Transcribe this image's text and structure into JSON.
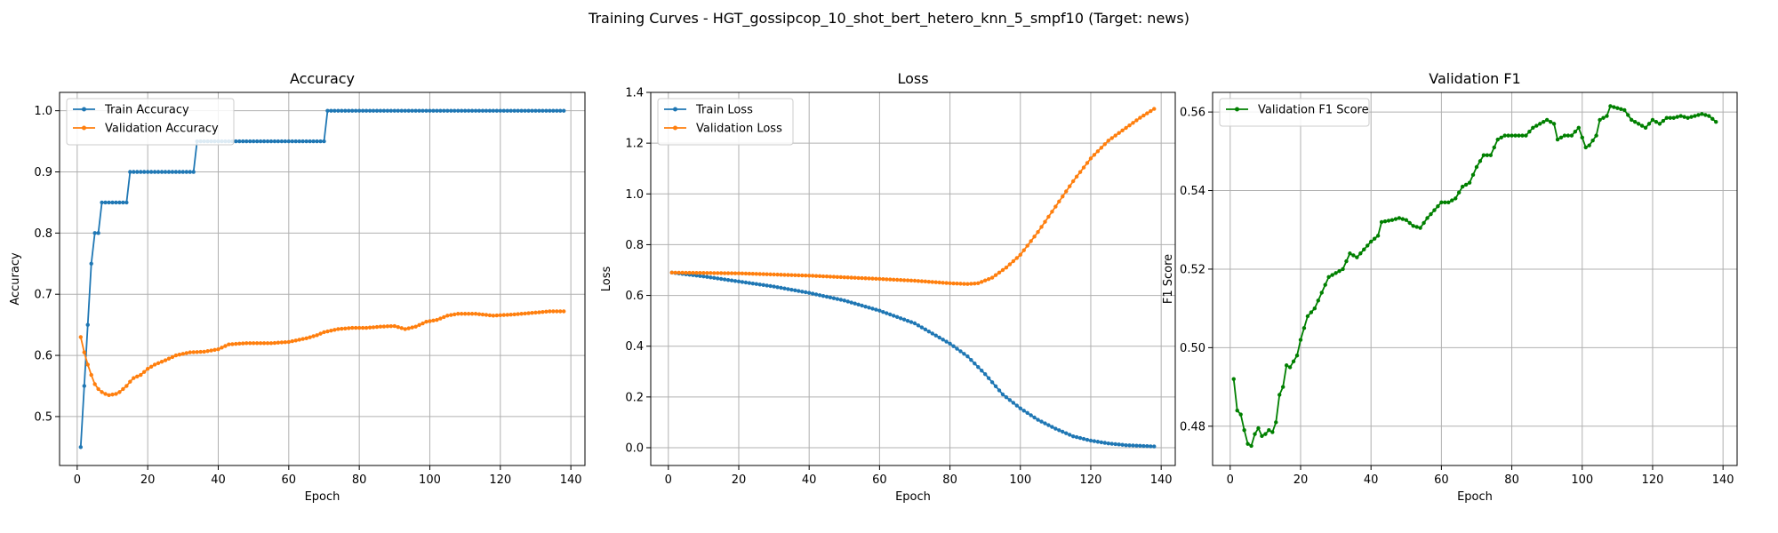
{
  "suptitle": "Training Curves - HGT_gossipcop_10_shot_bert_hetero_knn_5_smpf10 (Target: news)",
  "chart_data": [
    {
      "type": "line",
      "title": "Accuracy",
      "xlabel": "Epoch",
      "ylabel": "Accuracy",
      "xlim": [
        -5,
        144
      ],
      "ylim": [
        0.42,
        1.03
      ],
      "xticks": [
        0,
        20,
        40,
        60,
        80,
        100,
        120,
        140
      ],
      "yticks": [
        0.5,
        0.6,
        0.7,
        0.8,
        0.9,
        1.0
      ],
      "ytick_labels": [
        "0.5",
        "0.6",
        "0.7",
        "0.8",
        "0.9",
        "1.0"
      ],
      "grid": true,
      "legend_position": "upper-left",
      "x_range": [
        1,
        138
      ],
      "series": [
        {
          "name": "Train Accuracy",
          "color": "#1f77b4",
          "steps": [
            [
              1,
              0.45
            ],
            [
              2,
              0.55
            ],
            [
              3,
              0.65
            ],
            [
              4,
              0.75
            ],
            [
              5,
              0.8
            ],
            [
              7,
              0.85
            ],
            [
              15,
              0.9
            ],
            [
              34,
              0.95
            ],
            [
              71,
              1.0
            ]
          ]
        },
        {
          "name": "Validation Accuracy",
          "color": "#ff7f0e",
          "knots": [
            [
              1,
              0.63
            ],
            [
              2,
              0.605
            ],
            [
              3,
              0.585
            ],
            [
              4,
              0.568
            ],
            [
              5,
              0.553
            ],
            [
              6,
              0.545
            ],
            [
              7,
              0.54
            ],
            [
              8,
              0.537
            ],
            [
              9,
              0.535
            ],
            [
              10,
              0.536
            ],
            [
              11,
              0.537
            ],
            [
              12,
              0.54
            ],
            [
              13,
              0.545
            ],
            [
              14,
              0.55
            ],
            [
              15,
              0.557
            ],
            [
              16,
              0.563
            ],
            [
              18,
              0.568
            ],
            [
              20,
              0.578
            ],
            [
              22,
              0.585
            ],
            [
              25,
              0.592
            ],
            [
              28,
              0.6
            ],
            [
              32,
              0.605
            ],
            [
              36,
              0.606
            ],
            [
              40,
              0.61
            ],
            [
              43,
              0.618
            ],
            [
              48,
              0.62
            ],
            [
              55,
              0.62
            ],
            [
              60,
              0.622
            ],
            [
              65,
              0.628
            ],
            [
              68,
              0.633
            ],
            [
              70,
              0.638
            ],
            [
              74,
              0.643
            ],
            [
              78,
              0.645
            ],
            [
              82,
              0.645
            ],
            [
              86,
              0.647
            ],
            [
              90,
              0.648
            ],
            [
              93,
              0.643
            ],
            [
              96,
              0.647
            ],
            [
              99,
              0.655
            ],
            [
              102,
              0.658
            ],
            [
              105,
              0.665
            ],
            [
              108,
              0.668
            ],
            [
              113,
              0.668
            ],
            [
              118,
              0.665
            ],
            [
              124,
              0.667
            ],
            [
              130,
              0.67
            ],
            [
              134,
              0.672
            ],
            [
              138,
              0.672
            ]
          ]
        }
      ]
    },
    {
      "type": "line",
      "title": "Loss",
      "xlabel": "Epoch",
      "ylabel": "Loss",
      "xlim": [
        -5,
        144
      ],
      "ylim": [
        -0.07,
        1.4
      ],
      "xticks": [
        0,
        20,
        40,
        60,
        80,
        100,
        120,
        140
      ],
      "yticks": [
        0.0,
        0.2,
        0.4,
        0.6,
        0.8,
        1.0,
        1.2,
        1.4
      ],
      "ytick_labels": [
        "0.0",
        "0.2",
        "0.4",
        "0.6",
        "0.8",
        "1.0",
        "1.2",
        "1.4"
      ],
      "grid": true,
      "legend_position": "upper-left",
      "x_range": [
        1,
        138
      ],
      "series": [
        {
          "name": "Train Loss",
          "color": "#1f77b4",
          "knots": [
            [
              1,
              0.69
            ],
            [
              10,
              0.675
            ],
            [
              20,
              0.655
            ],
            [
              30,
              0.635
            ],
            [
              40,
              0.61
            ],
            [
              50,
              0.58
            ],
            [
              60,
              0.54
            ],
            [
              70,
              0.49
            ],
            [
              80,
              0.41
            ],
            [
              85,
              0.36
            ],
            [
              90,
              0.29
            ],
            [
              95,
              0.21
            ],
            [
              100,
              0.155
            ],
            [
              105,
              0.11
            ],
            [
              110,
              0.075
            ],
            [
              115,
              0.045
            ],
            [
              120,
              0.028
            ],
            [
              125,
              0.017
            ],
            [
              130,
              0.01
            ],
            [
              138,
              0.005
            ]
          ]
        },
        {
          "name": "Validation Loss",
          "color": "#ff7f0e",
          "knots": [
            [
              1,
              0.69
            ],
            [
              20,
              0.687
            ],
            [
              40,
              0.678
            ],
            [
              60,
              0.665
            ],
            [
              70,
              0.658
            ],
            [
              80,
              0.648
            ],
            [
              85,
              0.645
            ],
            [
              88,
              0.648
            ],
            [
              92,
              0.67
            ],
            [
              96,
              0.71
            ],
            [
              100,
              0.76
            ],
            [
              105,
              0.85
            ],
            [
              110,
              0.95
            ],
            [
              115,
              1.05
            ],
            [
              120,
              1.14
            ],
            [
              125,
              1.21
            ],
            [
              130,
              1.26
            ],
            [
              134,
              1.3
            ],
            [
              138,
              1.335
            ]
          ]
        }
      ]
    },
    {
      "type": "line",
      "title": "Validation F1",
      "xlabel": "Epoch",
      "ylabel": "F1 Score",
      "xlim": [
        -5,
        144
      ],
      "ylim": [
        0.47,
        0.565
      ],
      "xticks": [
        0,
        20,
        40,
        60,
        80,
        100,
        120,
        140
      ],
      "yticks": [
        0.48,
        0.5,
        0.52,
        0.54,
        0.56
      ],
      "ytick_labels": [
        "0.48",
        "0.50",
        "0.52",
        "0.54",
        "0.56"
      ],
      "grid": true,
      "legend_position": "upper-left",
      "x_range": [
        1,
        138
      ],
      "series": [
        {
          "name": "Validation F1 Score",
          "color": "#008000",
          "knots": [
            [
              1,
              0.492
            ],
            [
              2,
              0.484
            ],
            [
              3,
              0.483
            ],
            [
              4,
              0.479
            ],
            [
              5,
              0.4755
            ],
            [
              6,
              0.475
            ],
            [
              7,
              0.478
            ],
            [
              8,
              0.4795
            ],
            [
              9,
              0.4775
            ],
            [
              10,
              0.478
            ],
            [
              11,
              0.479
            ],
            [
              12,
              0.4785
            ],
            [
              13,
              0.481
            ],
            [
              14,
              0.488
            ],
            [
              15,
              0.49
            ],
            [
              16,
              0.4955
            ],
            [
              17,
              0.495
            ],
            [
              18,
              0.4965
            ],
            [
              19,
              0.498
            ],
            [
              20,
              0.502
            ],
            [
              21,
              0.505
            ],
            [
              22,
              0.508
            ],
            [
              24,
              0.51
            ],
            [
              26,
              0.514
            ],
            [
              28,
              0.518
            ],
            [
              30,
              0.519
            ],
            [
              32,
              0.52
            ],
            [
              34,
              0.524
            ],
            [
              36,
              0.523
            ],
            [
              38,
              0.525
            ],
            [
              40,
              0.527
            ],
            [
              42,
              0.5285
            ],
            [
              43,
              0.532
            ],
            [
              46,
              0.5325
            ],
            [
              48,
              0.533
            ],
            [
              50,
              0.5325
            ],
            [
              52,
              0.531
            ],
            [
              54,
              0.5305
            ],
            [
              56,
              0.533
            ],
            [
              58,
              0.535
            ],
            [
              60,
              0.537
            ],
            [
              62,
              0.537
            ],
            [
              64,
              0.538
            ],
            [
              66,
              0.541
            ],
            [
              68,
              0.542
            ],
            [
              70,
              0.546
            ],
            [
              72,
              0.549
            ],
            [
              74,
              0.549
            ],
            [
              76,
              0.553
            ],
            [
              78,
              0.554
            ],
            [
              80,
              0.554
            ],
            [
              84,
              0.554
            ],
            [
              86,
              0.556
            ],
            [
              88,
              0.557
            ],
            [
              90,
              0.558
            ],
            [
              92,
              0.557
            ],
            [
              93,
              0.553
            ],
            [
              95,
              0.554
            ],
            [
              97,
              0.554
            ],
            [
              99,
              0.556
            ],
            [
              100,
              0.5535
            ],
            [
              101,
              0.551
            ],
            [
              102,
              0.5515
            ],
            [
              104,
              0.554
            ],
            [
              105,
              0.558
            ],
            [
              107,
              0.559
            ],
            [
              108,
              0.5615
            ],
            [
              110,
              0.561
            ],
            [
              112,
              0.5605
            ],
            [
              114,
              0.558
            ],
            [
              116,
              0.557
            ],
            [
              118,
              0.556
            ],
            [
              120,
              0.558
            ],
            [
              122,
              0.557
            ],
            [
              124,
              0.5585
            ],
            [
              126,
              0.5585
            ],
            [
              128,
              0.559
            ],
            [
              130,
              0.5585
            ],
            [
              132,
              0.559
            ],
            [
              134,
              0.5595
            ],
            [
              136,
              0.559
            ],
            [
              138,
              0.5575
            ]
          ]
        }
      ]
    }
  ]
}
